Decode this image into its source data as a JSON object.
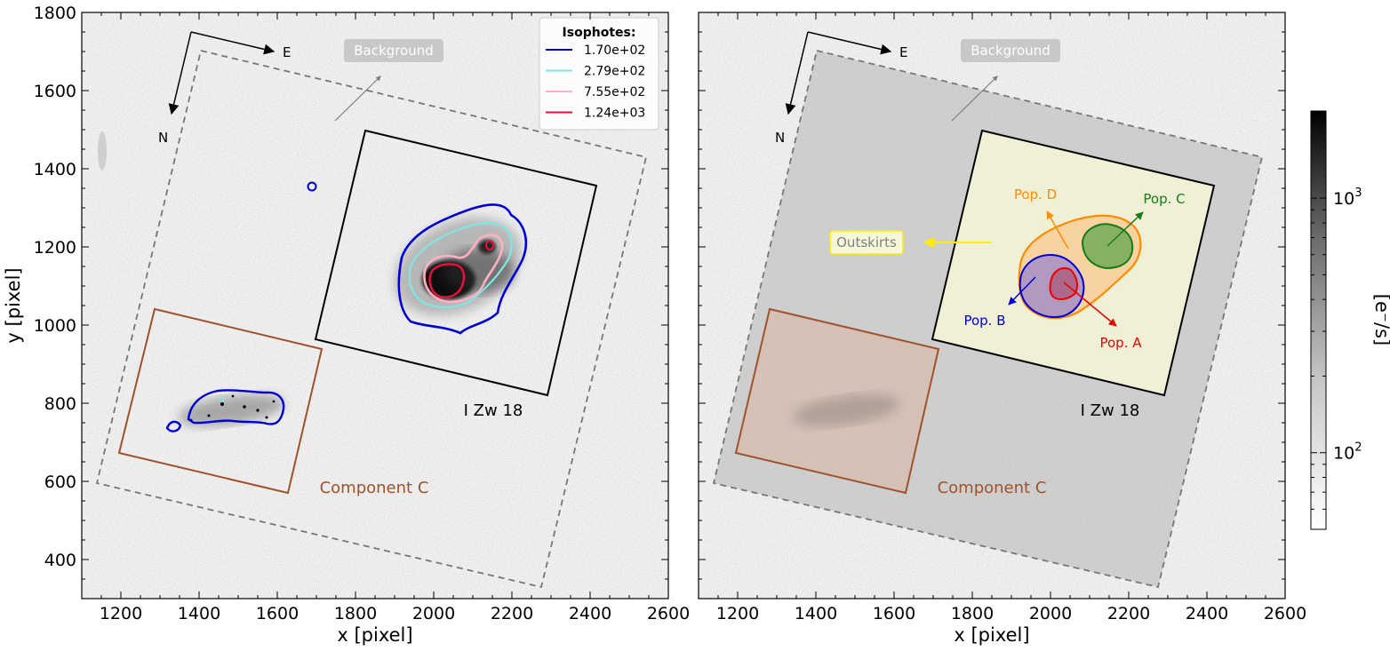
{
  "chart_data": [
    {
      "type": "image",
      "xlabel": "x [pixel]",
      "ylabel": "y [pixel]",
      "xlim": [
        1100,
        2600
      ],
      "ylim": [
        300,
        1800
      ],
      "xticks": [
        "1200",
        "1400",
        "1600",
        "1800",
        "2000",
        "2200",
        "2400",
        "2600"
      ],
      "yticks": [
        "400",
        "600",
        "800",
        "1000",
        "1200",
        "1400",
        "1600",
        "1800"
      ],
      "compass": {
        "east": "E",
        "north": "N"
      },
      "background_label": "Background",
      "legend": {
        "title": "Isophotes:",
        "placement": "top-right",
        "entries": [
          {
            "label": "1.70e+02",
            "color": "#0000dd"
          },
          {
            "label": "2.79e+02",
            "color": "#7fe6e6"
          },
          {
            "label": "7.55e+02",
            "color": "#ffb0c0"
          },
          {
            "label": "1.24e+03",
            "color": "#e8103c"
          }
        ]
      },
      "regions": {
        "main": {
          "label": "I Zw 18",
          "corners": [
            [
              1825,
              1500
            ],
            [
              2425,
              1355
            ],
            [
              2290,
              820
            ],
            [
              1690,
              965
            ]
          ]
        },
        "component_c": {
          "label": "Component C",
          "color": "#a0522d",
          "corners": [
            [
              1290,
              1045
            ],
            [
              1790,
              940
            ],
            [
              1630,
              570
            ],
            [
              1195,
              670
            ]
          ]
        },
        "field": {
          "corners": [
            [
              1410,
              1705
            ],
            [
              2545,
              1430
            ],
            [
              2275,
              325
            ],
            [
              1140,
              600
            ]
          ]
        }
      }
    },
    {
      "type": "image",
      "xlabel": "x [pixel]",
      "xlim": [
        1100,
        2600
      ],
      "ylim": [
        300,
        1800
      ],
      "xticks": [
        "1200",
        "1400",
        "1600",
        "1800",
        "2000",
        "2200",
        "2400",
        "2600"
      ],
      "compass": {
        "east": "E",
        "north": "N"
      },
      "background_label": "Background",
      "outskirts_label": "Outskirts",
      "populations": [
        {
          "label": "Pop. A",
          "color": "#ee0000"
        },
        {
          "label": "Pop. B",
          "color": "#0000dd"
        },
        {
          "label": "Pop. C",
          "color": "#1a7a1a"
        },
        {
          "label": "Pop. D",
          "color": "#ff8c00"
        }
      ],
      "regions": {
        "main": {
          "label": "I Zw 18"
        },
        "component_c": {
          "label": "Component C",
          "color": "#a0522d"
        }
      }
    }
  ],
  "colorbar": {
    "label": "[e⁻/s]",
    "scale": "log",
    "range": [
      50,
      2200
    ],
    "ticks": [
      {
        "value": 100,
        "base": "10",
        "exp": "2"
      },
      {
        "value": 1000,
        "base": "10",
        "exp": "3"
      }
    ]
  }
}
